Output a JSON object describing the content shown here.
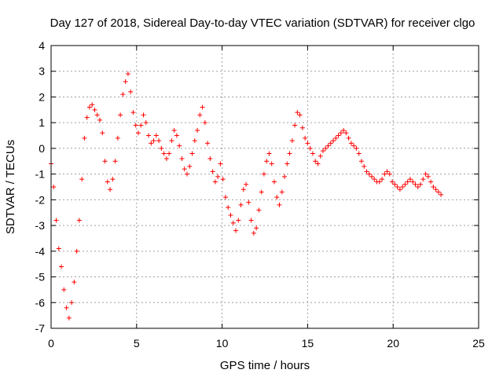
{
  "chart_data": {
    "type": "scatter",
    "title": "Day 127 of 2018, Sidereal Day-to-day VTEC variation (SDTVAR) for receiver clgo",
    "xlabel": "GPS time / hours",
    "ylabel": "SDTVAR / TECUs",
    "xlim": [
      0,
      25
    ],
    "ylim": [
      -7,
      4
    ],
    "xticks": [
      0,
      5,
      10,
      15,
      20,
      25
    ],
    "xtick_labels": [
      "0",
      "5",
      "10",
      "15",
      "20",
      "25"
    ],
    "yticks": [
      -7,
      -6,
      -5,
      -4,
      -3,
      -2,
      -1,
      0,
      1,
      2,
      3,
      4
    ],
    "ytick_labels": [
      "-7",
      "-6",
      "-5",
      "-4",
      "-3",
      "-2",
      "-1",
      "0",
      "1",
      "2",
      "3",
      "4"
    ],
    "grid": true,
    "marker": "+",
    "marker_color": "#ff0000",
    "series": [
      {
        "name": "SDTVAR",
        "x": [
          0.0,
          0.15,
          0.3,
          0.45,
          0.6,
          0.75,
          0.9,
          1.05,
          1.2,
          1.35,
          1.5,
          1.65,
          1.8,
          1.95,
          2.1,
          2.25,
          2.4,
          2.55,
          2.7,
          2.85,
          3.0,
          3.15,
          3.3,
          3.45,
          3.6,
          3.75,
          3.9,
          4.05,
          4.2,
          4.35,
          4.5,
          4.65,
          4.8,
          4.95,
          5.1,
          5.25,
          5.4,
          5.55,
          5.7,
          5.85,
          6.0,
          6.15,
          6.3,
          6.45,
          6.6,
          6.75,
          6.9,
          7.05,
          7.2,
          7.35,
          7.5,
          7.65,
          7.8,
          7.95,
          8.1,
          8.25,
          8.4,
          8.55,
          8.7,
          8.85,
          9.0,
          9.15,
          9.3,
          9.45,
          9.6,
          9.75,
          9.9,
          10.05,
          10.2,
          10.35,
          10.5,
          10.65,
          10.8,
          10.95,
          11.1,
          11.25,
          11.4,
          11.55,
          11.7,
          11.85,
          12.0,
          12.15,
          12.3,
          12.45,
          12.6,
          12.75,
          12.9,
          13.05,
          13.2,
          13.35,
          13.5,
          13.65,
          13.8,
          13.95,
          14.1,
          14.25,
          14.4,
          14.55,
          14.7,
          14.85,
          15.0,
          15.15,
          15.3,
          15.45,
          15.6,
          15.75,
          15.9,
          16.05,
          16.2,
          16.35,
          16.5,
          16.65,
          16.8,
          16.95,
          17.1,
          17.25,
          17.4,
          17.55,
          17.7,
          17.85,
          18.0,
          18.15,
          18.3,
          18.45,
          18.6,
          18.75,
          18.9,
          19.05,
          19.2,
          19.35,
          19.5,
          19.65,
          19.8,
          19.95,
          20.1,
          20.25,
          20.4,
          20.55,
          20.7,
          20.85,
          21.0,
          21.15,
          21.3,
          21.45,
          21.6,
          21.75,
          21.9,
          22.05,
          22.2,
          22.35,
          22.5,
          22.65,
          22.8
        ],
        "y": [
          -0.6,
          -1.5,
          -2.8,
          -3.9,
          -4.6,
          -5.5,
          -6.2,
          -6.6,
          -6.0,
          -5.2,
          -4.0,
          -2.8,
          -1.2,
          0.4,
          1.2,
          1.6,
          1.7,
          1.5,
          1.3,
          1.1,
          0.6,
          -0.5,
          -1.3,
          -1.6,
          -1.2,
          -0.5,
          0.4,
          1.3,
          2.1,
          2.6,
          2.9,
          2.2,
          1.4,
          0.9,
          0.6,
          0.9,
          1.3,
          1.0,
          0.5,
          0.2,
          0.3,
          0.5,
          0.3,
          0.0,
          -0.2,
          -0.4,
          -0.2,
          0.3,
          0.7,
          0.5,
          0.1,
          -0.4,
          -0.8,
          -1.0,
          -0.7,
          -0.2,
          0.3,
          0.7,
          1.3,
          1.6,
          1.0,
          0.2,
          -0.4,
          -0.9,
          -1.3,
          -1.1,
          -0.6,
          -1.2,
          -1.9,
          -2.3,
          -2.6,
          -2.9,
          -3.2,
          -2.8,
          -2.2,
          -1.6,
          -1.4,
          -2.1,
          -2.8,
          -3.3,
          -3.1,
          -2.4,
          -1.7,
          -1.0,
          -0.5,
          -0.2,
          -0.6,
          -1.3,
          -1.9,
          -2.2,
          -1.7,
          -1.1,
          -0.6,
          -0.2,
          0.3,
          0.9,
          1.4,
          1.3,
          0.8,
          0.4,
          0.2,
          0.0,
          -0.2,
          -0.5,
          -0.6,
          -0.3,
          -0.1,
          0.0,
          0.1,
          0.2,
          0.3,
          0.4,
          0.5,
          0.6,
          0.7,
          0.6,
          0.4,
          0.2,
          0.1,
          0.0,
          -0.2,
          -0.5,
          -0.7,
          -0.9,
          -1.0,
          -1.1,
          -1.2,
          -1.3,
          -1.3,
          -1.2,
          -1.0,
          -0.9,
          -1.0,
          -1.3,
          -1.4,
          -1.5,
          -1.6,
          -1.5,
          -1.4,
          -1.3,
          -1.2,
          -1.3,
          -1.4,
          -1.5,
          -1.4,
          -1.2,
          -1.0,
          -1.1,
          -1.3,
          -1.5,
          -1.6,
          -1.7,
          -1.8
        ]
      }
    ]
  }
}
